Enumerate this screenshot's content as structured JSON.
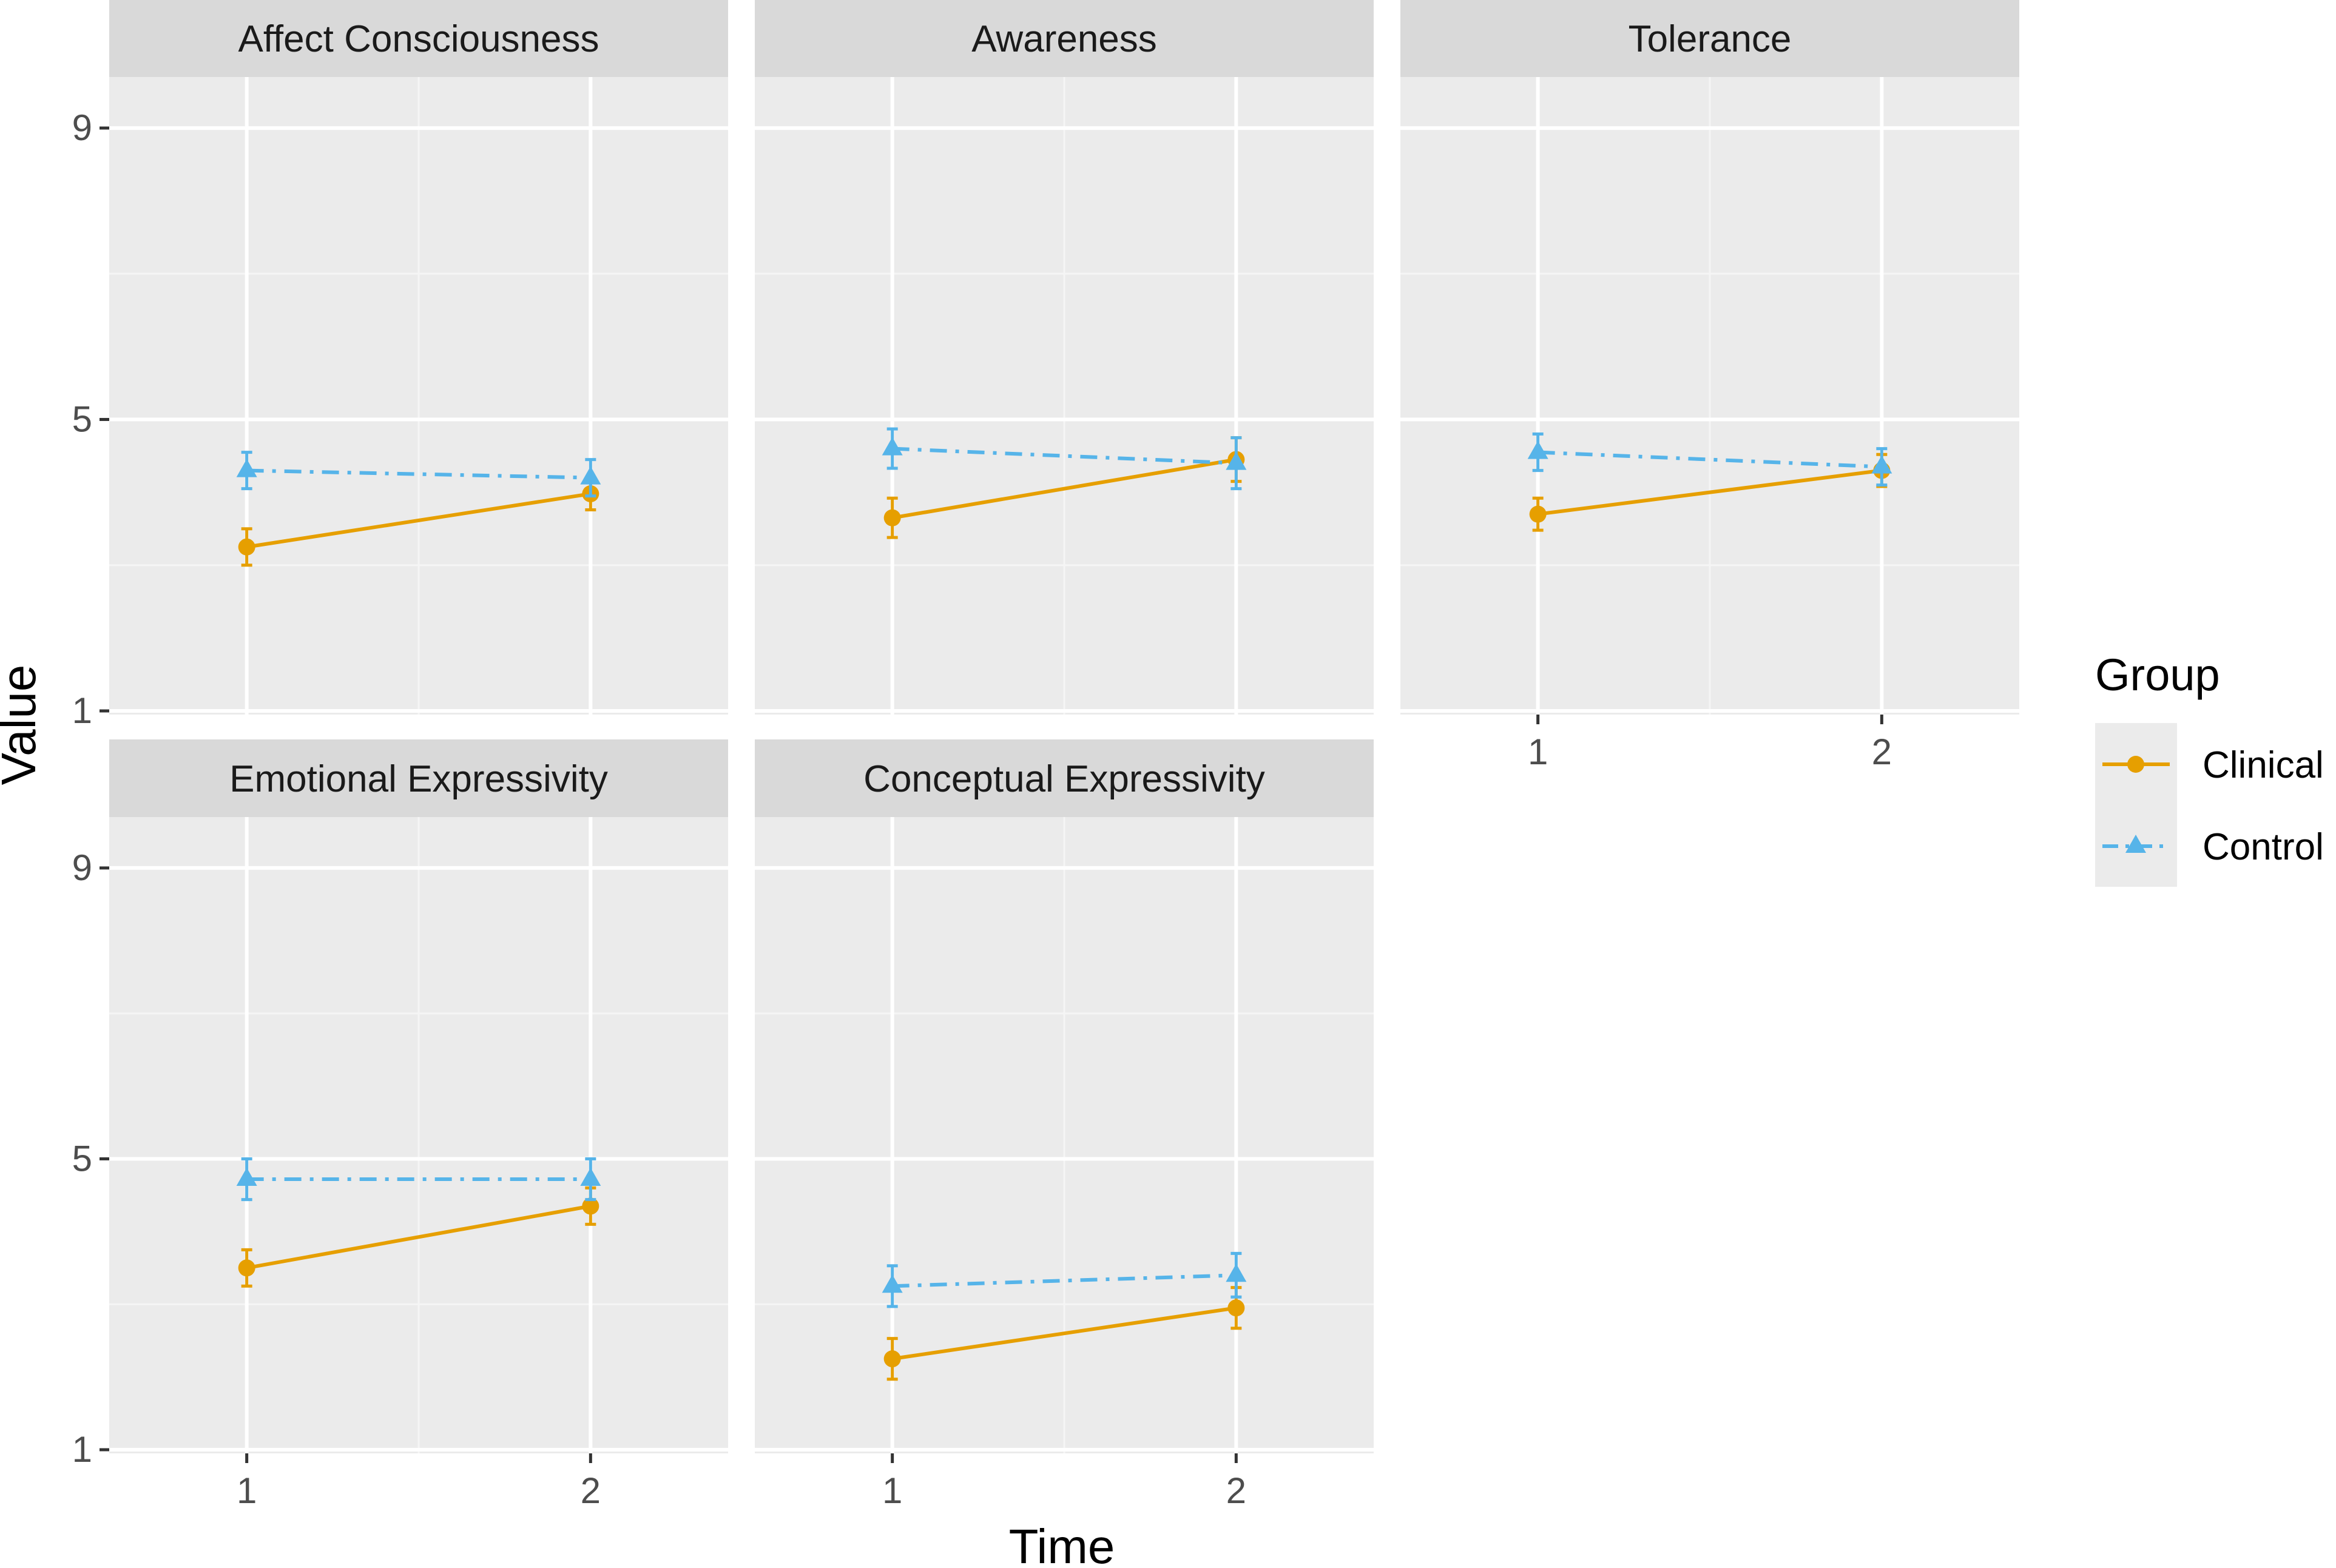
{
  "chart_data": {
    "type": "line",
    "title": "",
    "xlabel": "Time",
    "ylabel": "Value",
    "x": [
      1,
      2
    ],
    "x_ticks": [
      "1",
      "2"
    ],
    "y_ticks": [
      "1",
      "5",
      "9"
    ],
    "ylim": [
      0.95,
      9.7
    ],
    "legend": {
      "title": "Group",
      "position": "right",
      "entries": [
        "Clinical",
        "Control"
      ]
    },
    "colors": {
      "Clinical": "#E69F00",
      "Control": "#56B4E9"
    },
    "panels": [
      {
        "title": "Affect Consciousness",
        "series": [
          {
            "name": "Clinical",
            "values": [
              3.25,
              3.98
            ],
            "errors": [
              0.25,
              0.22
            ]
          },
          {
            "name": "Control",
            "values": [
              4.3,
              4.2
            ],
            "errors": [
              0.25,
              0.25
            ]
          }
        ]
      },
      {
        "title": "Awareness",
        "series": [
          {
            "name": "Clinical",
            "values": [
              3.65,
              4.45
            ],
            "errors": [
              0.27,
              0.3
            ]
          },
          {
            "name": "Control",
            "values": [
              4.6,
              4.4
            ],
            "errors": [
              0.27,
              0.35
            ]
          }
        ]
      },
      {
        "title": "Tolerance",
        "series": [
          {
            "name": "Clinical",
            "values": [
              3.7,
              4.3
            ],
            "errors": [
              0.22,
              0.22
            ]
          },
          {
            "name": "Control",
            "values": [
              4.55,
              4.35
            ],
            "errors": [
              0.25,
              0.25
            ]
          }
        ]
      },
      {
        "title": "Emotional Expressivity",
        "series": [
          {
            "name": "Clinical",
            "values": [
              3.5,
              4.35
            ],
            "errors": [
              0.25,
              0.25
            ]
          },
          {
            "name": "Control",
            "values": [
              4.72,
              4.72
            ],
            "errors": [
              0.28,
              0.28
            ]
          }
        ]
      },
      {
        "title": "Conceptual Expressivity",
        "series": [
          {
            "name": "Clinical",
            "values": [
              2.25,
              2.95
            ],
            "errors": [
              0.28,
              0.28
            ]
          },
          {
            "name": "Control",
            "values": [
              3.25,
              3.4
            ],
            "errors": [
              0.28,
              0.3
            ]
          }
        ]
      }
    ]
  }
}
